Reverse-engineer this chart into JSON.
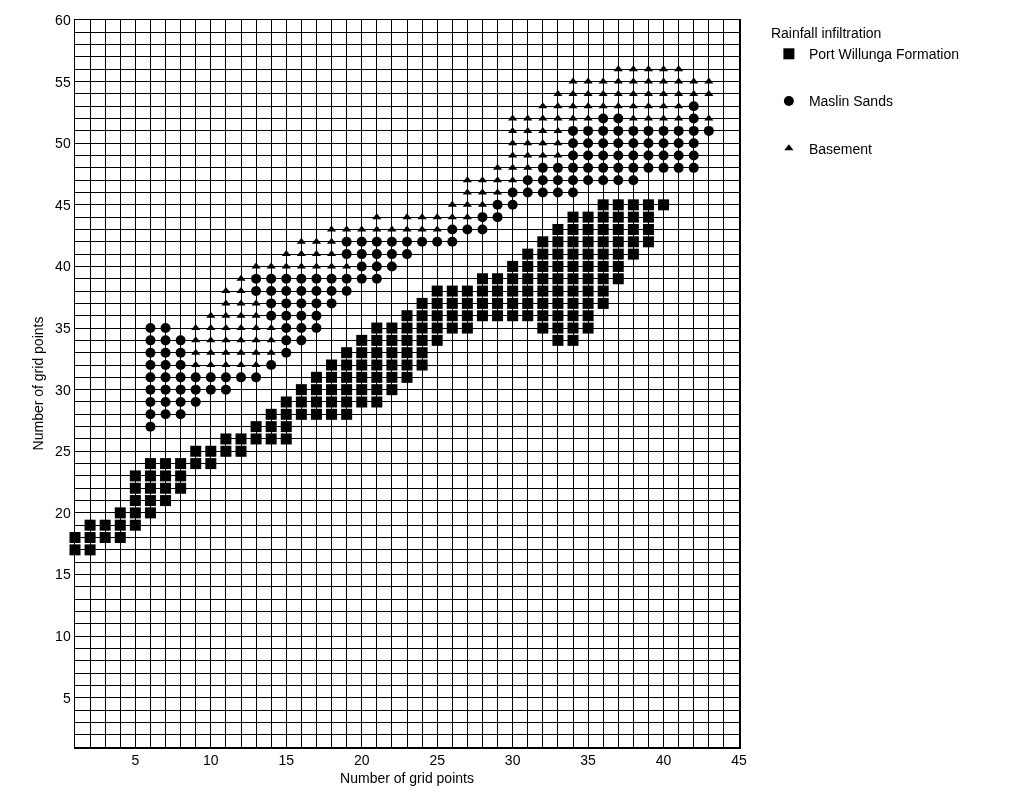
{
  "chart_data": {
    "type": "scatter",
    "xlabel": "Number of grid points",
    "ylabel": "Number of grid points",
    "legend_title": "Rainfall infiltration",
    "legend": "top right",
    "grid": true,
    "xlim": [
      1,
      45
    ],
    "ylim": [
      1,
      60
    ],
    "xticks": [
      {
        "value": 1,
        "label": null
      },
      {
        "value": 2,
        "label": null
      },
      {
        "value": 3,
        "label": null
      },
      {
        "value": 4,
        "label": null
      },
      5,
      {
        "value": 6,
        "label": null
      },
      {
        "value": 7,
        "label": null
      },
      {
        "value": 8,
        "label": null
      },
      {
        "value": 9,
        "label": null
      },
      10,
      {
        "value": 11,
        "label": null
      },
      {
        "value": 12,
        "label": null
      },
      {
        "value": 13,
        "label": null
      },
      {
        "value": 14,
        "label": null
      },
      15,
      {
        "value": 16,
        "label": null
      },
      {
        "value": 17,
        "label": null
      },
      {
        "value": 18,
        "label": null
      },
      {
        "value": 19,
        "label": null
      },
      20,
      {
        "value": 21,
        "label": null
      },
      {
        "value": 22,
        "label": null
      },
      {
        "value": 23,
        "label": null
      },
      {
        "value": 24,
        "label": null
      },
      25,
      {
        "value": 26,
        "label": null
      },
      {
        "value": 27,
        "label": null
      },
      {
        "value": 28,
        "label": null
      },
      {
        "value": 29,
        "label": null
      },
      30,
      {
        "value": 31,
        "label": null
      },
      {
        "value": 32,
        "label": null
      },
      {
        "value": 33,
        "label": null
      },
      {
        "value": 34,
        "label": null
      },
      35,
      {
        "value": 36,
        "label": null
      },
      {
        "value": 37,
        "label": null
      },
      {
        "value": 38,
        "label": null
      },
      {
        "value": 39,
        "label": null
      },
      40,
      {
        "value": 41,
        "label": null
      },
      {
        "value": 42,
        "label": null
      },
      {
        "value": 43,
        "label": null
      },
      {
        "value": 44,
        "label": null
      },
      45
    ],
    "yticks": [
      {
        "value": 1,
        "label": null
      },
      {
        "value": 2,
        "label": null
      },
      {
        "value": 3,
        "label": null
      },
      {
        "value": 4,
        "label": null
      },
      5,
      {
        "value": 6,
        "label": null
      },
      {
        "value": 7,
        "label": null
      },
      {
        "value": 8,
        "label": null
      },
      {
        "value": 9,
        "label": null
      },
      10,
      {
        "value": 11,
        "label": null
      },
      {
        "value": 12,
        "label": null
      },
      {
        "value": 13,
        "label": null
      },
      {
        "value": 14,
        "label": null
      },
      15,
      {
        "value": 16,
        "label": null
      },
      {
        "value": 17,
        "label": null
      },
      {
        "value": 18,
        "label": null
      },
      {
        "value": 19,
        "label": null
      },
      20,
      {
        "value": 21,
        "label": null
      },
      {
        "value": 22,
        "label": null
      },
      {
        "value": 23,
        "label": null
      },
      {
        "value": 24,
        "label": null
      },
      25,
      {
        "value": 26,
        "label": null
      },
      {
        "value": 27,
        "label": null
      },
      {
        "value": 28,
        "label": null
      },
      {
        "value": 29,
        "label": null
      },
      30,
      {
        "value": 31,
        "label": null
      },
      {
        "value": 32,
        "label": null
      },
      {
        "value": 33,
        "label": null
      },
      {
        "value": 34,
        "label": null
      },
      35,
      {
        "value": 36,
        "label": null
      },
      {
        "value": 37,
        "label": null
      },
      {
        "value": 38,
        "label": null
      },
      {
        "value": 39,
        "label": null
      },
      40,
      {
        "value": 41,
        "label": null
      },
      {
        "value": 42,
        "label": null
      },
      {
        "value": 43,
        "label": null
      },
      {
        "value": 44,
        "label": null
      },
      45,
      {
        "value": 46,
        "label": null
      },
      {
        "value": 47,
        "label": null
      },
      {
        "value": 48,
        "label": null
      },
      {
        "value": 49,
        "label": null
      },
      50,
      {
        "value": 51,
        "label": null
      },
      {
        "value": 52,
        "label": null
      },
      {
        "value": 53,
        "label": null
      },
      {
        "value": 54,
        "label": null
      },
      55,
      {
        "value": 56,
        "label": null
      },
      {
        "value": 57,
        "label": null
      },
      {
        "value": 58,
        "label": null
      },
      {
        "value": 59,
        "label": null
      },
      60
    ],
    "series": [
      {
        "name": "Port Willunga Formation",
        "color": "#000000",
        "marker": "square",
        "x": [
          1,
          1,
          2,
          2,
          2,
          3,
          3,
          4,
          4,
          4,
          5,
          5,
          5,
          5,
          5,
          6,
          6,
          6,
          6,
          6,
          7,
          7,
          7,
          7,
          8,
          8,
          8,
          9,
          9,
          10,
          10,
          11,
          11,
          12,
          12,
          13,
          13,
          14,
          14,
          14,
          15,
          15,
          15,
          15,
          16,
          16,
          16,
          17,
          17,
          17,
          17,
          18,
          18,
          18,
          18,
          18,
          19,
          19,
          19,
          19,
          19,
          19,
          20,
          20,
          20,
          20,
          20,
          20,
          21,
          21,
          21,
          21,
          21,
          21,
          21,
          22,
          22,
          22,
          22,
          22,
          22,
          23,
          23,
          23,
          23,
          23,
          23,
          24,
          24,
          24,
          24,
          24,
          24,
          25,
          25,
          25,
          25,
          25,
          26,
          26,
          26,
          26,
          27,
          27,
          27,
          27,
          28,
          28,
          28,
          28,
          29,
          29,
          29,
          29,
          30,
          30,
          30,
          30,
          30,
          31,
          31,
          31,
          31,
          31,
          31,
          32,
          32,
          32,
          32,
          32,
          32,
          32,
          32,
          33,
          33,
          33,
          33,
          33,
          33,
          33,
          33,
          33,
          33,
          34,
          34,
          34,
          34,
          34,
          34,
          34,
          34,
          34,
          34,
          34,
          35,
          35,
          35,
          35,
          35,
          35,
          35,
          35,
          35,
          35,
          36,
          36,
          36,
          36,
          36,
          36,
          36,
          36,
          36,
          37,
          37,
          37,
          37,
          37,
          37,
          37,
          38,
          38,
          38,
          38,
          38,
          39,
          39,
          39,
          39,
          40
        ],
        "values": [
          17,
          18,
          17,
          18,
          19,
          18,
          19,
          18,
          19,
          20,
          19,
          20,
          21,
          22,
          23,
          20,
          21,
          22,
          23,
          24,
          21,
          22,
          23,
          24,
          22,
          23,
          24,
          24,
          25,
          24,
          25,
          25,
          26,
          25,
          26,
          26,
          27,
          26,
          27,
          28,
          26,
          27,
          28,
          29,
          28,
          29,
          30,
          28,
          29,
          30,
          31,
          28,
          29,
          30,
          31,
          32,
          28,
          29,
          30,
          31,
          32,
          33,
          29,
          30,
          31,
          32,
          33,
          34,
          29,
          30,
          31,
          32,
          33,
          34,
          35,
          30,
          31,
          32,
          33,
          34,
          35,
          31,
          32,
          33,
          34,
          35,
          36,
          32,
          33,
          34,
          35,
          36,
          37,
          34,
          35,
          36,
          37,
          38,
          35,
          36,
          37,
          38,
          35,
          36,
          37,
          38,
          36,
          37,
          38,
          39,
          36,
          37,
          38,
          39,
          36,
          37,
          38,
          39,
          40,
          36,
          37,
          38,
          39,
          40,
          41,
          35,
          36,
          37,
          38,
          39,
          40,
          41,
          42,
          34,
          35,
          36,
          37,
          38,
          39,
          40,
          41,
          42,
          43,
          34,
          35,
          36,
          37,
          38,
          39,
          40,
          41,
          42,
          43,
          44,
          35,
          36,
          37,
          38,
          39,
          40,
          41,
          42,
          43,
          44,
          37,
          38,
          39,
          40,
          41,
          42,
          43,
          44,
          45,
          39,
          40,
          41,
          42,
          43,
          44,
          45,
          41,
          42,
          43,
          44,
          45,
          42,
          43,
          44,
          45,
          45
        ]
      },
      {
        "name": "Maslin Sands",
        "color": "#000000",
        "marker": "circle",
        "x": [
          6,
          6,
          6,
          6,
          6,
          6,
          6,
          6,
          6,
          7,
          7,
          7,
          7,
          7,
          7,
          7,
          7,
          8,
          8,
          8,
          8,
          8,
          8,
          8,
          9,
          9,
          9,
          10,
          10,
          11,
          11,
          12,
          13,
          13,
          13,
          14,
          14,
          14,
          14,
          14,
          15,
          15,
          15,
          15,
          15,
          15,
          15,
          16,
          16,
          16,
          16,
          16,
          16,
          17,
          17,
          17,
          17,
          17,
          18,
          18,
          18,
          19,
          19,
          19,
          19,
          20,
          20,
          20,
          20,
          21,
          21,
          21,
          21,
          22,
          22,
          22,
          23,
          23,
          24,
          25,
          26,
          26,
          27,
          28,
          28,
          29,
          29,
          30,
          30,
          31,
          31,
          32,
          32,
          32,
          33,
          33,
          33,
          34,
          34,
          34,
          34,
          34,
          34,
          35,
          35,
          35,
          35,
          35,
          36,
          36,
          36,
          36,
          36,
          36,
          37,
          37,
          37,
          37,
          37,
          37,
          38,
          38,
          38,
          38,
          38,
          39,
          39,
          39,
          39,
          40,
          40,
          40,
          40,
          41,
          41,
          41,
          41,
          42,
          42,
          42,
          42,
          42,
          42,
          43
        ],
        "values": [
          27,
          28,
          29,
          30,
          31,
          32,
          33,
          34,
          35,
          28,
          29,
          30,
          31,
          32,
          33,
          34,
          35,
          28,
          29,
          30,
          31,
          32,
          33,
          34,
          29,
          30,
          31,
          30,
          31,
          30,
          31,
          31,
          31,
          38,
          39,
          32,
          36,
          37,
          38,
          39,
          33,
          34,
          35,
          36,
          37,
          38,
          39,
          34,
          35,
          36,
          37,
          38,
          39,
          35,
          36,
          37,
          38,
          39,
          37,
          38,
          39,
          38,
          39,
          41,
          42,
          39,
          40,
          41,
          42,
          39,
          40,
          41,
          42,
          40,
          41,
          42,
          41,
          42,
          42,
          42,
          42,
          43,
          43,
          43,
          44,
          44,
          45,
          45,
          46,
          46,
          47,
          46,
          47,
          48,
          46,
          47,
          48,
          46,
          47,
          48,
          49,
          50,
          51,
          47,
          48,
          49,
          50,
          51,
          47,
          48,
          49,
          50,
          51,
          52,
          47,
          48,
          49,
          50,
          51,
          52,
          47,
          48,
          49,
          50,
          51,
          48,
          49,
          50,
          51,
          48,
          49,
          50,
          51,
          48,
          49,
          50,
          51,
          48,
          49,
          50,
          51,
          52,
          53,
          51
        ]
      },
      {
        "name": "Basement",
        "color": "#000000",
        "marker": "triangle",
        "x": [
          9,
          9,
          9,
          9,
          10,
          10,
          10,
          10,
          10,
          11,
          11,
          11,
          11,
          11,
          11,
          11,
          12,
          12,
          12,
          12,
          12,
          12,
          12,
          12,
          13,
          13,
          13,
          13,
          13,
          13,
          13,
          14,
          14,
          14,
          14,
          15,
          15,
          16,
          16,
          16,
          17,
          17,
          17,
          18,
          18,
          18,
          18,
          19,
          19,
          20,
          21,
          21,
          22,
          23,
          23,
          24,
          24,
          25,
          25,
          26,
          26,
          27,
          27,
          27,
          27,
          28,
          28,
          28,
          29,
          29,
          29,
          30,
          30,
          30,
          30,
          30,
          30,
          31,
          31,
          31,
          31,
          31,
          32,
          32,
          32,
          32,
          32,
          33,
          33,
          33,
          33,
          33,
          33,
          34,
          34,
          34,
          34,
          35,
          35,
          35,
          35,
          36,
          36,
          36,
          37,
          37,
          37,
          37,
          38,
          38,
          38,
          38,
          38,
          39,
          39,
          39,
          39,
          39,
          40,
          40,
          40,
          40,
          40,
          41,
          41,
          41,
          41,
          41,
          42,
          42,
          43,
          43,
          43
        ],
        "values": [
          32,
          33,
          34,
          35,
          32,
          33,
          34,
          35,
          36,
          32,
          33,
          34,
          35,
          36,
          37,
          38,
          32,
          33,
          34,
          35,
          36,
          37,
          38,
          39,
          32,
          33,
          34,
          35,
          36,
          37,
          40,
          33,
          34,
          35,
          40,
          40,
          41,
          40,
          41,
          42,
          40,
          41,
          42,
          40,
          41,
          42,
          43,
          40,
          43,
          43,
          43,
          44,
          43,
          43,
          44,
          43,
          44,
          43,
          44,
          44,
          45,
          44,
          45,
          46,
          47,
          45,
          46,
          47,
          46,
          47,
          48,
          47,
          48,
          49,
          50,
          51,
          52,
          48,
          49,
          50,
          51,
          52,
          49,
          50,
          51,
          52,
          53,
          49,
          50,
          51,
          52,
          53,
          54,
          52,
          53,
          54,
          55,
          52,
          53,
          54,
          55,
          53,
          54,
          55,
          53,
          54,
          55,
          56,
          52,
          53,
          54,
          55,
          56,
          52,
          53,
          54,
          55,
          56,
          52,
          53,
          54,
          55,
          56,
          52,
          53,
          54,
          55,
          56,
          54,
          55,
          52,
          54,
          55
        ]
      }
    ]
  }
}
